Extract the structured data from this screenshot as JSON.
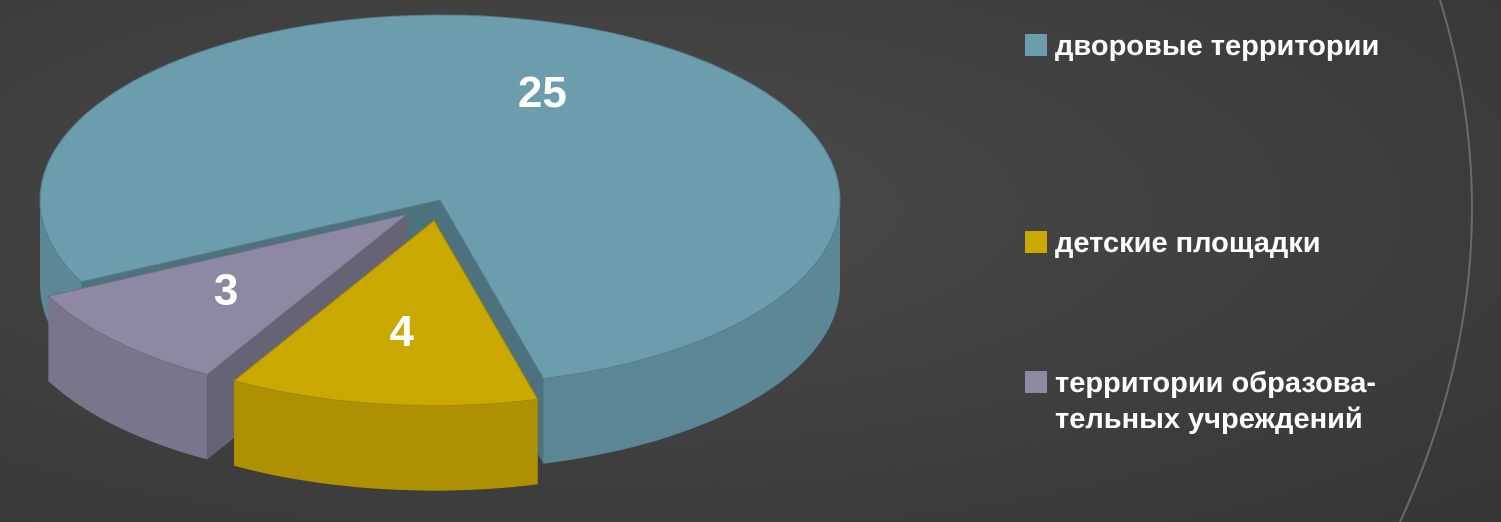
{
  "chart_data": {
    "type": "pie3d",
    "categories": [
      "дворовые территории",
      "детские площадки",
      "территории образова-\nтельных учреждений"
    ],
    "values": [
      25,
      4,
      3
    ],
    "colors": [
      "#6b9dad",
      "#c9a900",
      "#8d89a2"
    ],
    "legend": "right"
  }
}
